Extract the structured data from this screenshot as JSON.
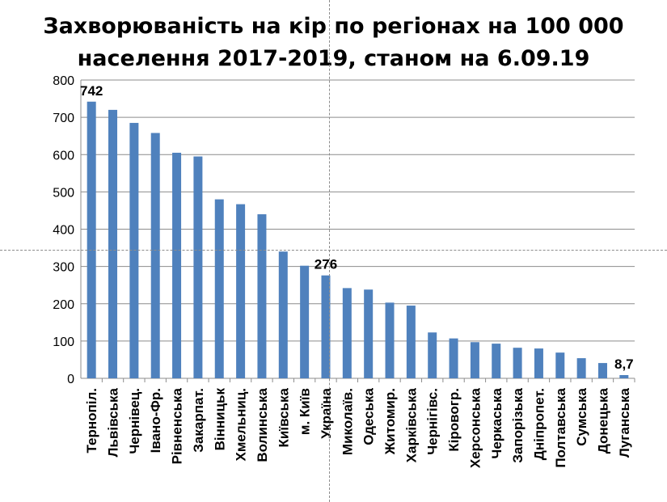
{
  "chart_data": {
    "type": "bar",
    "title": "Захворюваність на кір по регіонах на 100 000 населення 2017-2019, станом на 6.09.19",
    "title_lines": [
      "Захворюваність на кір по регіонах на 100 000",
      "населення 2017-2019, станом на 6.09.19"
    ],
    "xlabel": "",
    "ylabel": "",
    "ylim": [
      0,
      800
    ],
    "yticks": [
      "0",
      "100",
      "200",
      "300",
      "400",
      "500",
      "600",
      "700",
      "800"
    ],
    "grid": true,
    "legend": "none",
    "bar_color": "#4f81bd",
    "categories": [
      "Тернопіл.",
      "Львівська",
      "Чернівец.",
      "Івано-Фр.",
      "Рівненська",
      "Закарпат.",
      "Вінницьк",
      "Хмельниц.",
      "Волинська",
      "Київська",
      "м. Київ",
      "Україна",
      "Миколаїв.",
      "Одеська",
      "Житомир.",
      "Харківська",
      "Чернігівс.",
      "Кіровогр.",
      "Херсонська",
      "Черкаська",
      "Запорізька",
      "Дніпропет.",
      "Полтавська",
      "Сумська",
      "Донецька",
      "Луганська"
    ],
    "values": [
      742,
      720,
      685,
      658,
      605,
      595,
      480,
      467,
      440,
      340,
      302,
      276,
      242,
      238,
      203,
      195,
      123,
      107,
      97,
      93,
      82,
      80,
      69,
      54,
      41,
      8.7
    ],
    "data_labels": [
      {
        "index": 0,
        "text": "742"
      },
      {
        "index": 11,
        "text": "276"
      },
      {
        "index": 25,
        "text": "8,7"
      }
    ]
  }
}
